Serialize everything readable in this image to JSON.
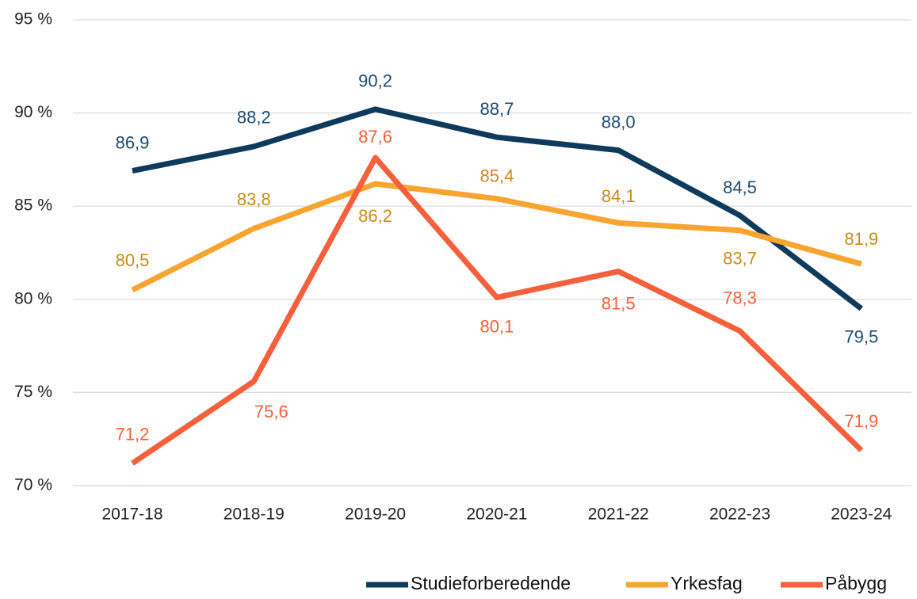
{
  "chart_data": {
    "type": "line",
    "categories": [
      "2017-18",
      "2018-19",
      "2019-20",
      "2020-21",
      "2021-22",
      "2022-23",
      "2023-24"
    ],
    "series": [
      {
        "name": "Studieforberedende",
        "color": "#0e3a5c",
        "label_color": "#1d4b70",
        "values": [
          86.9,
          88.2,
          90.2,
          88.7,
          88.0,
          84.5,
          79.5
        ],
        "value_labels": [
          "86,9",
          "88,2",
          "90,2",
          "88,7",
          "88,0",
          "84,5",
          "79,5"
        ]
      },
      {
        "name": "Yrkesfag",
        "color": "#f7a530",
        "label_color": "#c98a1d",
        "values": [
          80.5,
          83.8,
          86.2,
          85.4,
          84.1,
          83.7,
          81.9
        ],
        "value_labels": [
          "80,5",
          "83,8",
          "86,2",
          "85,4",
          "84,1",
          "83,7",
          "81,9"
        ]
      },
      {
        "name": "Påbygg",
        "color": "#f4603c",
        "label_color": "#f4603c",
        "values": [
          71.2,
          75.6,
          87.6,
          80.1,
          81.5,
          78.3,
          71.9
        ],
        "value_labels": [
          "71,2",
          "75,6",
          "87,6",
          "80,1",
          "81,5",
          "78,3",
          "71,9"
        ]
      }
    ],
    "ylim": [
      70,
      95
    ],
    "yticks": [
      {
        "value": 70,
        "label": "70 %"
      },
      {
        "value": 75,
        "label": "75 %"
      },
      {
        "value": 80,
        "label": "80 %"
      },
      {
        "value": 85,
        "label": "85 %"
      },
      {
        "value": 90,
        "label": "90 %"
      },
      {
        "value": 95,
        "label": "95 %"
      }
    ],
    "grid": true,
    "legend": "bottom right"
  }
}
